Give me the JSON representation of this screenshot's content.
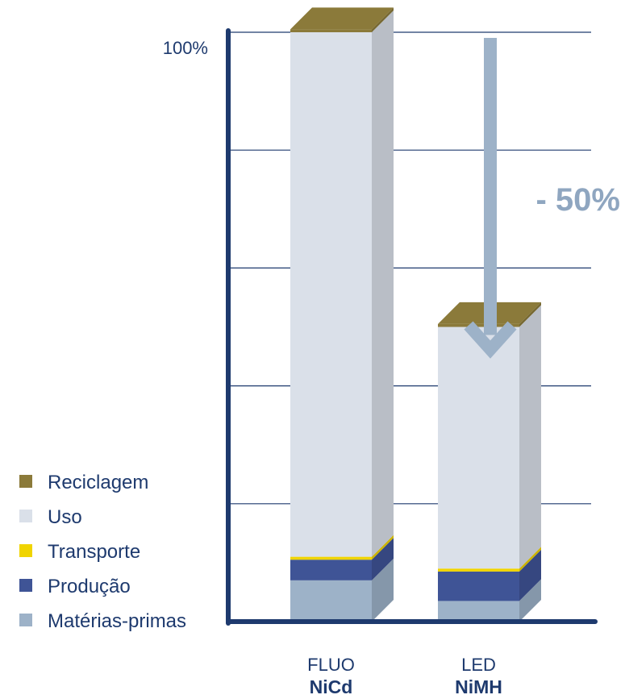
{
  "chart_data": {
    "type": "bar",
    "stacked": true,
    "style": "3d",
    "categories": [
      {
        "top": "FLUO",
        "bottom": "NiCd"
      },
      {
        "top": "LED",
        "bottom": "NiMH"
      }
    ],
    "series": [
      {
        "name": "Matérias-primas",
        "color": "#9db2c8",
        "values": [
          7,
          3.5
        ]
      },
      {
        "name": "Produção",
        "color": "#3f5496",
        "values": [
          3.5,
          5
        ]
      },
      {
        "name": "Transporte",
        "color": "#f0d400",
        "values": [
          0.5,
          0.5
        ]
      },
      {
        "name": "Uso",
        "color": "#dae0e9",
        "values": [
          89,
          41
        ]
      },
      {
        "name": "Reciclagem",
        "color": "#8b7a3a",
        "values": [
          0.5,
          0.5
        ]
      }
    ],
    "ylim": [
      0,
      100
    ],
    "yticks": [
      0,
      20,
      40,
      60,
      80,
      100
    ],
    "ytick_labels": [
      {
        "value": 100,
        "label": "100%"
      }
    ],
    "grid": true,
    "legend_position": "bottom-left",
    "legend_order": [
      "Reciclagem",
      "Uso",
      "Transporte",
      "Produção",
      "Matérias-primas"
    ],
    "annotation": {
      "text": "- 50%",
      "from_value": 100,
      "to_value": 50,
      "color": "#9db2c8"
    },
    "axis_color": "#1e3a6e"
  }
}
